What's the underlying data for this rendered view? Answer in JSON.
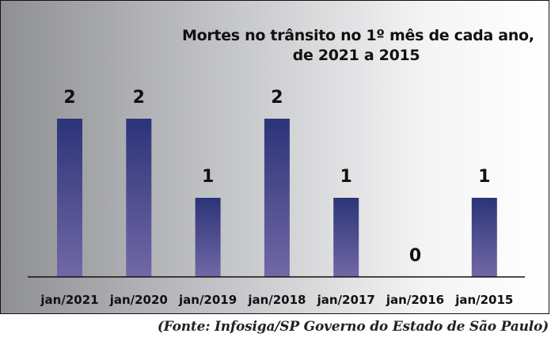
{
  "chart_data": {
    "type": "bar",
    "title": "Mortes no trânsito no 1º mês de cada ano,",
    "subtitle": "de 2021 a 2015",
    "categories": [
      "jan/2021",
      "jan/2020",
      "jan/2019",
      "jan/2018",
      "jan/2017",
      "jan/2016",
      "jan/2015"
    ],
    "values": [
      2,
      2,
      1,
      2,
      1,
      0,
      1
    ],
    "data_labels": [
      "2",
      "2",
      "1",
      "2",
      "1",
      "0",
      "1"
    ],
    "xlabel": "",
    "ylabel": "",
    "ylim": [
      0,
      2
    ],
    "grid": false,
    "legend": "none",
    "colors": {
      "bar_top": "#2b3478",
      "bar_bottom": "#7268a6",
      "baseline": "#111111"
    }
  },
  "source": "(Fonte: Infosiga/SP Governo do Estado de São Paulo)"
}
